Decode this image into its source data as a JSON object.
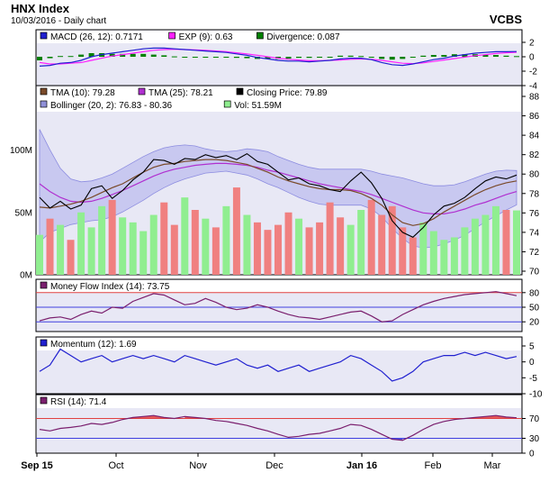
{
  "header": {
    "title": "HNX Index",
    "subtitle": "10/03/2016 - Daily chart",
    "source": "VCBS"
  },
  "colors": {
    "panel_bg": "#e8e8f5",
    "band_fill": "#c8c8f0",
    "close": "#000000",
    "tma10": "#7a4a2a",
    "tma25": "#b030d0",
    "macd": "#2020d0",
    "exp": "#ff20ff",
    "divergence": "#008000",
    "vol_up": "#90ee90",
    "vol_down": "#f08080",
    "mfi": "#7a1f6e",
    "momentum": "#2020d0",
    "rsi": "#7a1f6e",
    "ref_red": "#e04040",
    "ref_blue": "#4040e0"
  },
  "x_axis": {
    "labels": [
      "Sep 15",
      "Oct",
      "Nov",
      "Dec",
      "Jan 16",
      "Feb",
      "Mar"
    ],
    "bold": [
      "Sep 15",
      "Jan 16"
    ]
  },
  "macd_panel": {
    "legend": [
      {
        "label": "MACD (26, 12): 0.7171",
        "color": "#2020d0"
      },
      {
        "label": "EXP (9): 0.63",
        "color": "#ff20ff"
      },
      {
        "label": "Divergence: 0.087",
        "color": "#008000"
      }
    ],
    "ticks": [
      "2",
      "0",
      "-2",
      "-4"
    ]
  },
  "price_panel": {
    "legend": [
      {
        "label": "TMA (10): 79.28",
        "color": "#7a4a2a"
      },
      {
        "label": "TMA (25): 78.21",
        "color": "#b030d0"
      },
      {
        "label": "Closing Price: 79.89",
        "color": "#000000"
      },
      {
        "label": "Bollinger (20, 2): 76.83 - 80.36",
        "color": "#9090d8"
      },
      {
        "label": "Vol: 51.59M",
        "color": "#90ee90"
      }
    ],
    "ticks": [
      "88",
      "86",
      "84",
      "82",
      "80",
      "78",
      "76",
      "74",
      "72",
      "70"
    ],
    "vol_ticks": [
      "100M",
      "50M",
      "0M"
    ]
  },
  "mfi_panel": {
    "legend": [
      {
        "label": "Money Flow Index (14): 73.75",
        "color": "#7a1f6e"
      }
    ],
    "ticks": [
      "80",
      "50",
      "20"
    ]
  },
  "momentum_panel": {
    "legend": [
      {
        "label": "Momentum (12): 1.69",
        "color": "#2020d0"
      }
    ],
    "ticks": [
      "5",
      "0",
      "-5",
      "-10"
    ]
  },
  "rsi_panel": {
    "legend": [
      {
        "label": "RSI (14): 71.4",
        "color": "#7a1f6e"
      }
    ],
    "ticks": [
      "70",
      "30",
      "0"
    ]
  },
  "chart_data": {
    "type": "line",
    "title": "HNX Index",
    "x_range": [
      "2015-09-15",
      "2016-03-10"
    ],
    "price": {
      "ylim": [
        70,
        88
      ],
      "close": [
        77.6,
        76.5,
        77.2,
        76.4,
        76.8,
        78.5,
        78.8,
        77.5,
        78.3,
        79.4,
        80.2,
        81.5,
        81.4,
        81.0,
        81.6,
        81.5,
        82.0,
        81.7,
        81.9,
        81.5,
        82.1,
        81.3,
        81.0,
        80.2,
        79.4,
        79.6,
        79.0,
        78.8,
        78.4,
        78.2,
        79.3,
        80.2,
        79.1,
        77.5,
        75.2,
        74.0,
        73.5,
        74.5,
        75.8,
        76.7,
        77.0,
        77.6,
        78.5,
        79.3,
        79.7,
        79.5,
        79.9
      ],
      "tma10": [
        76.6,
        76.5,
        76.7,
        76.9,
        77.2,
        77.6,
        78.1,
        78.6,
        79.0,
        79.6,
        80.2,
        80.7,
        81.0,
        81.1,
        81.3,
        81.4,
        81.5,
        81.5,
        81.4,
        81.2,
        81.0,
        80.6,
        80.2,
        79.7,
        79.3,
        79.0,
        78.7,
        78.5,
        78.4,
        78.4,
        78.3,
        78.0,
        77.5,
        76.8,
        75.8,
        75.0,
        74.7,
        74.9,
        75.4,
        76.1,
        76.7,
        77.3,
        77.9,
        78.4,
        78.8,
        79.1,
        79.3
      ],
      "tma25": [
        79.0,
        78.2,
        77.6,
        77.2,
        77.1,
        77.2,
        77.5,
        77.9,
        78.3,
        78.8,
        79.3,
        79.8,
        80.2,
        80.5,
        80.7,
        80.9,
        81.0,
        81.1,
        81.1,
        81.0,
        80.9,
        80.7,
        80.4,
        80.2,
        79.9,
        79.6,
        79.3,
        79.0,
        78.8,
        78.6,
        78.4,
        78.2,
        77.9,
        77.5,
        77.1,
        76.7,
        76.3,
        76.0,
        75.9,
        75.9,
        76.1,
        76.4,
        76.8,
        77.1,
        77.5,
        77.9,
        78.2
      ],
      "boll_upper": [
        84.6,
        82.5,
        80.6,
        79.5,
        79.2,
        79.3,
        79.6,
        80.0,
        80.6,
        81.2,
        81.8,
        82.3,
        82.7,
        82.9,
        83.0,
        82.9,
        82.6,
        82.4,
        82.3,
        82.4,
        82.6,
        82.5,
        82.3,
        81.8,
        81.4,
        81.0,
        80.7,
        80.5,
        80.5,
        80.5,
        80.5,
        80.5,
        80.3,
        80.0,
        79.8,
        79.6,
        79.3,
        79.0,
        78.8,
        78.8,
        78.9,
        79.2,
        79.6,
        80.0,
        80.3,
        80.4,
        80.36
      ],
      "boll_lower": [
        73.0,
        74.0,
        74.4,
        74.8,
        75.0,
        75.2,
        75.3,
        75.6,
        76.1,
        76.7,
        77.3,
        78.0,
        78.6,
        79.1,
        79.5,
        79.8,
        80.1,
        80.2,
        80.3,
        80.1,
        79.9,
        79.5,
        79.0,
        78.6,
        78.1,
        77.6,
        77.2,
        76.9,
        76.8,
        76.8,
        76.8,
        76.8,
        76.4,
        75.6,
        74.4,
        73.4,
        72.6,
        72.4,
        72.5,
        72.8,
        73.2,
        73.7,
        74.4,
        75.1,
        75.7,
        76.3,
        76.83
      ]
    },
    "volume": {
      "ylim_m": [
        0,
        130
      ],
      "values_m": [
        32,
        45,
        40,
        28,
        50,
        38,
        55,
        60,
        46,
        42,
        35,
        48,
        58,
        40,
        62,
        52,
        45,
        38,
        55,
        70,
        48,
        42,
        36,
        40,
        50,
        45,
        38,
        42,
        58,
        46,
        40,
        52,
        60,
        48,
        55,
        38,
        30,
        42,
        35,
        28,
        30,
        38,
        45,
        48,
        55,
        52,
        51.59
      ],
      "up": [
        true,
        false,
        true,
        false,
        true,
        true,
        true,
        false,
        true,
        true,
        true,
        true,
        false,
        false,
        true,
        false,
        true,
        false,
        true,
        false,
        true,
        false,
        false,
        false,
        false,
        true,
        false,
        false,
        false,
        false,
        true,
        true,
        false,
        false,
        false,
        false,
        false,
        true,
        true,
        true,
        true,
        true,
        true,
        true,
        true,
        false,
        true
      ]
    },
    "macd": {
      "ylim": [
        -4,
        3
      ],
      "macd": [
        -1.3,
        -1.2,
        -0.9,
        -0.8,
        -0.5,
        0.0,
        0.3,
        0.5,
        0.7,
        0.9,
        1.1,
        1.2,
        1.2,
        1.1,
        1.0,
        0.9,
        0.8,
        0.7,
        0.6,
        0.4,
        0.2,
        -0.1,
        -0.3,
        -0.5,
        -0.6,
        -0.6,
        -0.7,
        -0.6,
        -0.5,
        -0.3,
        -0.2,
        -0.2,
        -0.4,
        -0.8,
        -1.1,
        -1.2,
        -1.0,
        -0.7,
        -0.4,
        -0.2,
        0.1,
        0.3,
        0.5,
        0.6,
        0.7,
        0.7,
        0.72
      ],
      "exp": [
        -0.8,
        -1.0,
        -1.0,
        -0.9,
        -0.8,
        -0.5,
        -0.2,
        0.1,
        0.3,
        0.5,
        0.7,
        0.9,
        1.0,
        1.05,
        1.0,
        0.95,
        0.9,
        0.8,
        0.7,
        0.55,
        0.4,
        0.2,
        0.0,
        -0.2,
        -0.35,
        -0.45,
        -0.55,
        -0.55,
        -0.5,
        -0.45,
        -0.35,
        -0.3,
        -0.35,
        -0.5,
        -0.7,
        -0.9,
        -0.95,
        -0.85,
        -0.65,
        -0.45,
        -0.25,
        -0.05,
        0.15,
        0.3,
        0.45,
        0.55,
        0.63
      ],
      "divergence": [
        -0.5,
        -0.2,
        0.1,
        0.1,
        0.3,
        0.5,
        0.5,
        0.4,
        0.4,
        0.4,
        0.4,
        0.3,
        0.2,
        0.05,
        0.0,
        -0.05,
        -0.1,
        -0.1,
        -0.1,
        -0.15,
        -0.2,
        -0.3,
        -0.3,
        -0.3,
        -0.25,
        -0.15,
        -0.15,
        -0.05,
        0.0,
        0.15,
        0.15,
        0.1,
        -0.05,
        -0.3,
        -0.4,
        -0.3,
        -0.05,
        0.15,
        0.25,
        0.25,
        0.35,
        0.35,
        0.35,
        0.3,
        0.25,
        0.15,
        0.087
      ]
    },
    "mfi": {
      "ylim": [
        0,
        100
      ],
      "values": [
        22,
        28,
        30,
        25,
        35,
        42,
        38,
        50,
        48,
        62,
        70,
        78,
        75,
        65,
        55,
        58,
        68,
        60,
        50,
        45,
        48,
        55,
        50,
        42,
        35,
        30,
        28,
        25,
        30,
        35,
        40,
        42,
        32,
        20,
        22,
        35,
        45,
        55,
        62,
        68,
        72,
        76,
        78,
        80,
        82,
        78,
        73.75
      ]
    },
    "momentum": {
      "ylim": [
        -10,
        5
      ],
      "values": [
        -3,
        -1,
        4,
        2,
        0,
        1,
        2,
        0,
        1,
        2,
        1,
        2,
        1,
        0,
        2,
        1,
        0,
        -1,
        0,
        1,
        -1,
        -2,
        -1,
        -3,
        -2,
        -1,
        -3,
        -2,
        -1,
        0,
        2,
        1,
        -1,
        -3,
        -6,
        -5,
        -3,
        0,
        1,
        2,
        2,
        3,
        2,
        3,
        2,
        1,
        1.69
      ]
    },
    "rsi": {
      "ylim": [
        0,
        100
      ],
      "values": [
        48,
        45,
        50,
        52,
        55,
        60,
        58,
        62,
        68,
        72,
        74,
        76,
        72,
        70,
        74,
        72,
        70,
        66,
        64,
        60,
        56,
        50,
        45,
        38,
        32,
        34,
        38,
        40,
        45,
        50,
        58,
        56,
        48,
        38,
        28,
        26,
        36,
        48,
        58,
        64,
        68,
        70,
        72,
        74,
        76,
        73,
        71.4
      ]
    }
  }
}
